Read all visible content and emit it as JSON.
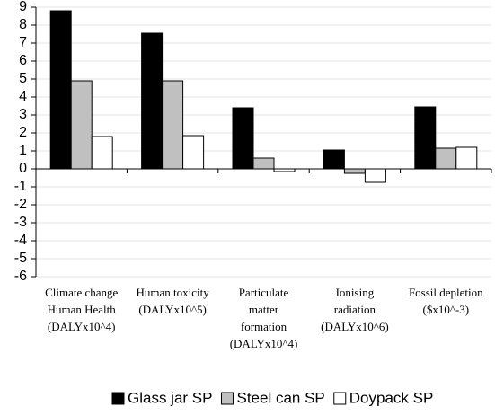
{
  "chart_data": {
    "type": "bar",
    "categories": [
      [
        "Climate change",
        "Human Health",
        "(DALYx10^4)"
      ],
      [
        "Human toxicity",
        "(DALYx10^5)"
      ],
      [
        "Particulate",
        "matter",
        "formation",
        "(DALYx10^4)"
      ],
      [
        "Ionising",
        "radiation",
        "(DALYx10^6)"
      ],
      [
        "Fossil depletion",
        "($x10^-3)"
      ]
    ],
    "series": [
      {
        "name": "Glass jar SP",
        "color": "#000000",
        "values": [
          8.8,
          7.55,
          3.4,
          1.05,
          3.45
        ]
      },
      {
        "name": "Steel can SP",
        "color": "#c0c0c0",
        "values": [
          4.9,
          4.9,
          0.6,
          -0.25,
          1.15
        ]
      },
      {
        "name": "Doypack SP",
        "color": "#ffffff",
        "values": [
          1.8,
          1.85,
          -0.15,
          -0.75,
          1.2
        ]
      }
    ],
    "ylim": [
      -6,
      9
    ],
    "yticks": [
      -6,
      -5,
      -4,
      -3,
      -2,
      -1,
      0,
      1,
      2,
      3,
      4,
      5,
      6,
      7,
      8,
      9
    ],
    "grid": true,
    "legend": "bottom"
  }
}
